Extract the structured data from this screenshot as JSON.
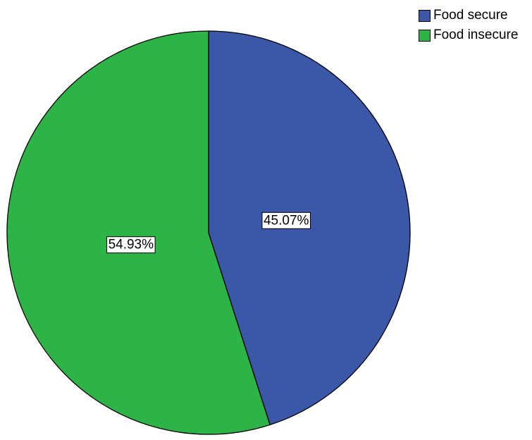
{
  "chart_data": {
    "type": "pie",
    "slices": [
      {
        "label": "Food secure",
        "value": 45.07,
        "display": "45.07%",
        "color": "#3b57a8"
      },
      {
        "label": "Food insecure",
        "value": 54.93,
        "display": "54.93%",
        "color": "#2db447"
      }
    ],
    "legend_position": "top-right",
    "start_angle": "12 o'clock",
    "direction": "clockwise"
  }
}
